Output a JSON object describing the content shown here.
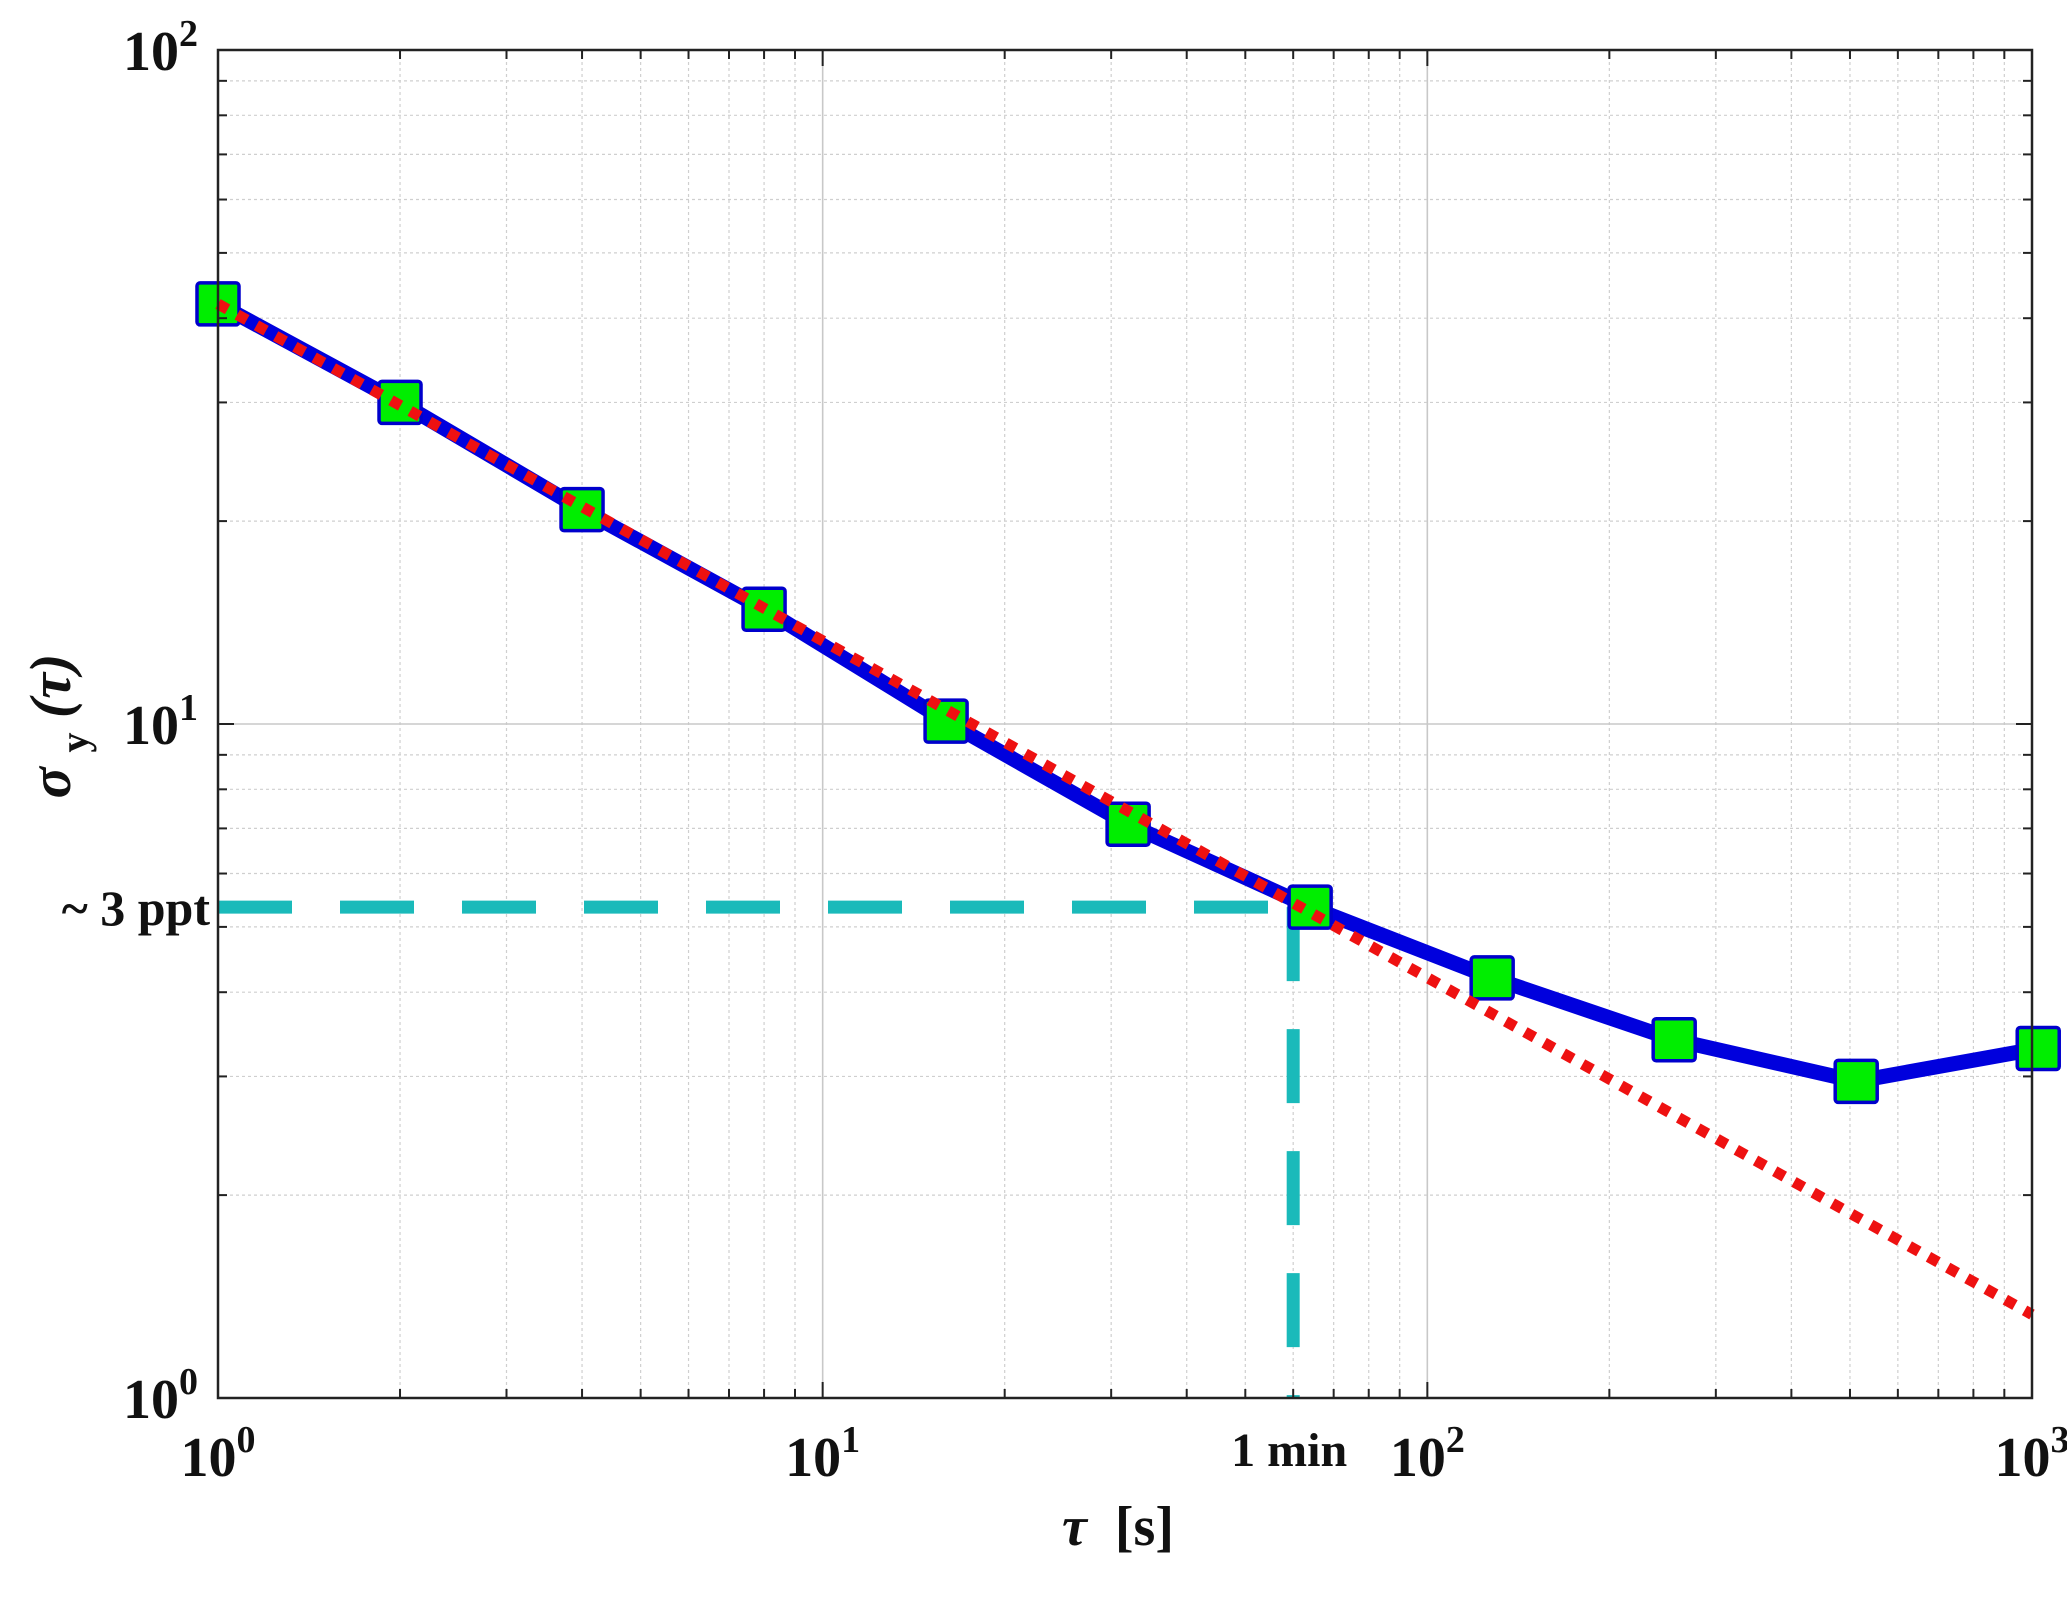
{
  "chart_data": {
    "type": "line",
    "x_scale": "log",
    "y_scale": "log",
    "xlim": [
      1,
      1000
    ],
    "ylim": [
      1,
      100
    ],
    "grid": true,
    "xlabel_symbol": "τ",
    "xlabel_unit": "[s]",
    "ylabel_symbol": "σ",
    "ylabel_sub": "y",
    "ylabel_arg": "(τ)",
    "x_ticks": [
      {
        "base": "10",
        "exp": "0",
        "value": 1
      },
      {
        "base": "10",
        "exp": "1",
        "value": 10
      },
      {
        "base": "10",
        "exp": "2",
        "value": 100
      },
      {
        "base": "10",
        "exp": "3",
        "value": 1000
      }
    ],
    "y_ticks": [
      {
        "base": "10",
        "exp": "0",
        "value": 1
      },
      {
        "base": "10",
        "exp": "1",
        "value": 10
      },
      {
        "base": "10",
        "exp": "2",
        "value": 100
      }
    ],
    "series": [
      {
        "kind": "measured",
        "line_color": "#0000dd",
        "marker": "square",
        "marker_fill": "#00ee00",
        "marker_edge": "#0000cc",
        "x": [
          1,
          2,
          4,
          8,
          16,
          32,
          64,
          128,
          256,
          512,
          1024
        ],
        "y": [
          42,
          30,
          20.8,
          14.8,
          10.1,
          7.1,
          5.35,
          4.2,
          3.4,
          2.95,
          3.3
        ]
      },
      {
        "kind": "fit",
        "line_color": "#ee1111",
        "style": "dotted",
        "x": [
          1,
          1000
        ],
        "y": [
          42,
          1.33
        ]
      }
    ],
    "annotations": [
      {
        "kind": "hline",
        "color": "#1ababa",
        "y": 5.35,
        "x_from": 1,
        "x_to": 60,
        "label": "~ 3 ppt"
      },
      {
        "kind": "vline",
        "color": "#1ababa",
        "x": 60,
        "y_from": 1,
        "y_to": 5.35,
        "label": "1 min"
      }
    ]
  }
}
